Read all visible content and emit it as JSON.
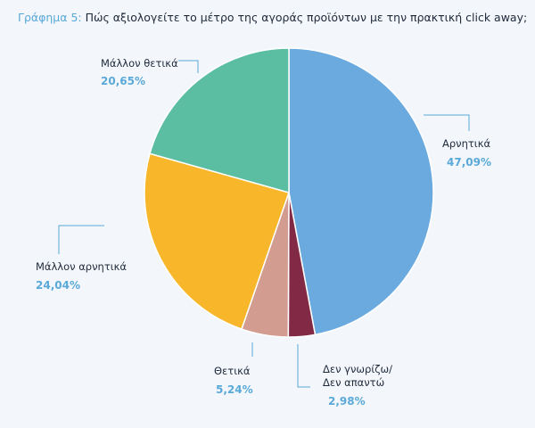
{
  "title": {
    "prefix": "Γράφημα 5:",
    "text": "Πώς αξιολογείτε το μέτρο της αγοράς προϊόντων με την πρακτική click away;"
  },
  "chart_data": {
    "type": "pie",
    "title": "Γράφημα 5: Πώς αξιολογείτε το μέτρο της αγοράς προϊόντων με την πρακτική click away;",
    "slices": [
      {
        "label": "Αρνητικά",
        "value": 47.09,
        "display": "47,09%",
        "color": "#6aaade"
      },
      {
        "label": "Δεν γνωρίζω/ Δεν απαντώ",
        "label_line1": "Δεν γνωρίζω/",
        "label_line2": "Δεν απαντώ",
        "value": 2.98,
        "display": "2,98%",
        "color": "#822a45"
      },
      {
        "label": "Θετικά",
        "value": 5.24,
        "display": "5,24%",
        "color": "#d39c91"
      },
      {
        "label": "Μάλλον αρνητικά",
        "value": 24.04,
        "display": "24,04%",
        "color": "#f8b62a"
      },
      {
        "label": "Μάλλον θετικά",
        "value": 20.65,
        "display": "20,65%",
        "color": "#5bbda2"
      }
    ],
    "start_angle": "12 o'clock",
    "direction": "clockwise",
    "legend": "none",
    "label_color": "#1e2a3a",
    "percent_color": "#5aa9d8",
    "leader_line_color": "#5aa9d8"
  }
}
